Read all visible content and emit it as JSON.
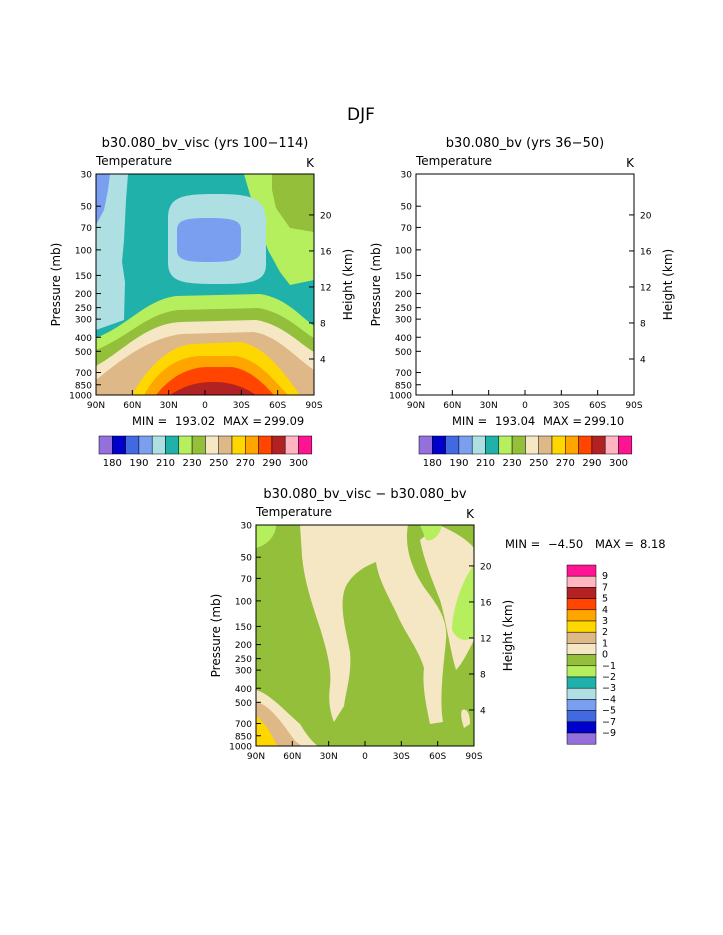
{
  "figure": {
    "title": "DJF"
  },
  "palette": {
    "colors": [
      "#9370db",
      "#0000cd",
      "#4169e1",
      "#7b9ff0",
      "#aee0e3",
      "#20b2aa",
      "#b6ef5e",
      "#93bf3a",
      "#f5e6c4",
      "#deb887",
      "#ffd700",
      "#ffa500",
      "#ff4500",
      "#b22222",
      "#ffb6c1",
      "#ff1493"
    ],
    "bar_labels": [
      "180",
      "190",
      "210",
      "230",
      "250",
      "270",
      "290",
      "300"
    ]
  },
  "diff_legend": {
    "labels": [
      "9",
      "7",
      "5",
      "4",
      "3",
      "2",
      "1",
      "0",
      "−1",
      "−2",
      "−3",
      "−4",
      "−5",
      "−7",
      "−9"
    ],
    "colors": [
      "#ff1493",
      "#ffb6c1",
      "#b22222",
      "#ff4500",
      "#ffa500",
      "#ffd700",
      "#deb887",
      "#f5e6c4",
      "#93bf3a",
      "#b6ef5e",
      "#20b2aa",
      "#aee0e3",
      "#7b9ff0",
      "#4169e1",
      "#0000cd",
      "#9370db"
    ]
  },
  "chart_data": [
    {
      "type": "contour",
      "title": "b30.080_bv_visc (yrs 100−114)",
      "variable_label": "Temperature",
      "units_label": "K",
      "xlabel": "",
      "ylabel": "Pressure (mb)",
      "y2label": "Height (km)",
      "x_ticks": [
        "90N",
        "60N",
        "30N",
        "0",
        "30S",
        "60S",
        "90S"
      ],
      "y_ticks": [
        "30",
        "50",
        "70",
        "100",
        "150",
        "200",
        "250",
        "300",
        "400",
        "500",
        "700",
        "850",
        "1000"
      ],
      "y_tick_values": [
        30,
        50,
        70,
        100,
        150,
        200,
        250,
        300,
        400,
        500,
        700,
        850,
        1000
      ],
      "y2_ticks": [
        "20",
        "16",
        "12",
        "8",
        "4"
      ],
      "y2_tick_values": [
        20,
        16,
        12,
        8,
        4
      ],
      "xlim": [
        -90,
        90
      ],
      "ylim": [
        1000,
        30
      ],
      "min_label": "MIN = ",
      "min": "193.02",
      "max_label": "MAX = ",
      "max": "299.09"
    },
    {
      "type": "contour",
      "title": "b30.080_bv (yrs 36−50)",
      "variable_label": "Temperature",
      "units_label": "K",
      "xlabel": "",
      "ylabel": "Pressure (mb)",
      "y2label": "Height (km)",
      "x_ticks": [
        "90N",
        "60N",
        "30N",
        "0",
        "30S",
        "60S",
        "90S"
      ],
      "y_ticks": [
        "30",
        "50",
        "70",
        "100",
        "150",
        "200",
        "250",
        "300",
        "400",
        "500",
        "700",
        "850",
        "1000"
      ],
      "y_tick_values": [
        30,
        50,
        70,
        100,
        150,
        200,
        250,
        300,
        400,
        500,
        700,
        850,
        1000
      ],
      "y2_ticks": [
        "20",
        "16",
        "12",
        "8",
        "4"
      ],
      "y2_tick_values": [
        20,
        16,
        12,
        8,
        4
      ],
      "xlim": [
        -90,
        90
      ],
      "ylim": [
        1000,
        30
      ],
      "min_label": "MIN = ",
      "min": "193.04",
      "max_label": "MAX = ",
      "max": "299.10"
    },
    {
      "type": "contour",
      "title": "b30.080_bv_visc − b30.080_bv",
      "variable_label": "Temperature",
      "units_label": "K",
      "xlabel": "",
      "ylabel": "Pressure (mb)",
      "y2label": "Height (km)",
      "x_ticks": [
        "90N",
        "60N",
        "30N",
        "0",
        "30S",
        "60S",
        "90S"
      ],
      "y_ticks": [
        "30",
        "50",
        "70",
        "100",
        "150",
        "200",
        "250",
        "300",
        "400",
        "500",
        "700",
        "850",
        "1000"
      ],
      "y_tick_values": [
        30,
        50,
        70,
        100,
        150,
        200,
        250,
        300,
        400,
        500,
        700,
        850,
        1000
      ],
      "y2_ticks": [
        "20",
        "16",
        "12",
        "8",
        "4"
      ],
      "y2_tick_values": [
        20,
        16,
        12,
        8,
        4
      ],
      "xlim": [
        -90,
        90
      ],
      "ylim": [
        1000,
        30
      ],
      "min_label": "MIN = ",
      "min": "−4.50",
      "max_label": "MAX = ",
      "max": "8.18"
    }
  ]
}
